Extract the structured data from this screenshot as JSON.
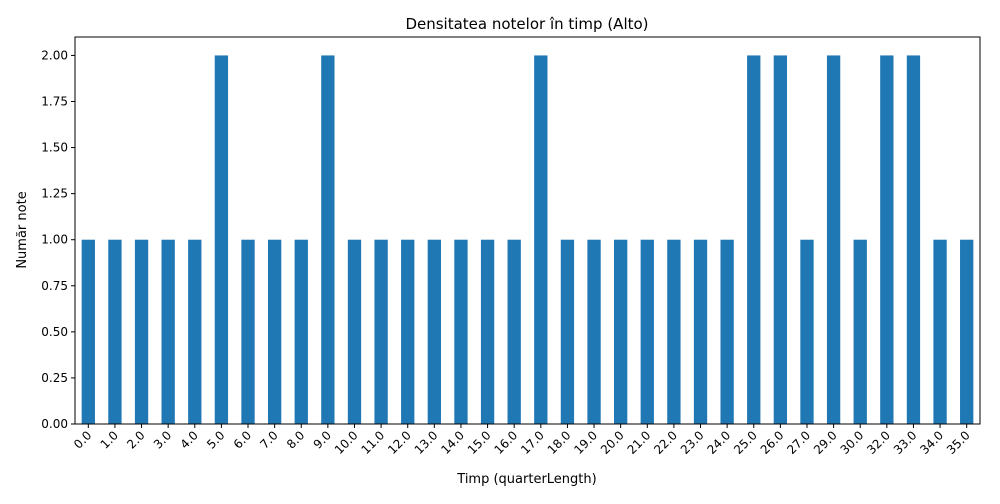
{
  "chart_data": {
    "type": "bar",
    "title": "Densitatea notelor în timp (Alto)",
    "xlabel": "Timp (quarterLength)",
    "ylabel": "Număr note",
    "categories": [
      "0.0",
      "1.0",
      "2.0",
      "3.0",
      "4.0",
      "5.0",
      "6.0",
      "7.0",
      "8.0",
      "9.0",
      "10.0",
      "11.0",
      "12.0",
      "13.0",
      "14.0",
      "15.0",
      "16.0",
      "17.0",
      "18.0",
      "19.0",
      "20.0",
      "21.0",
      "22.0",
      "23.0",
      "24.0",
      "25.0",
      "26.0",
      "27.0",
      "29.0",
      "30.0",
      "32.0",
      "33.0",
      "34.0",
      "35.0"
    ],
    "values": [
      1,
      1,
      1,
      1,
      1,
      2,
      1,
      1,
      1,
      2,
      1,
      1,
      1,
      1,
      1,
      1,
      1,
      2,
      1,
      1,
      1,
      1,
      1,
      1,
      1,
      2,
      2,
      1,
      2,
      1,
      2,
      2,
      1,
      1
    ],
    "ylim": [
      0,
      2.1
    ],
    "yticks": [
      0,
      0.25,
      0.5,
      0.75,
      1.0,
      1.25,
      1.5,
      1.75,
      2.0
    ],
    "ytick_labels": [
      "0.00",
      "0.25",
      "0.50",
      "0.75",
      "1.00",
      "1.25",
      "1.50",
      "1.75",
      "2.00"
    ],
    "bar_color": "#1f77b4",
    "grid": false,
    "legend": false
  }
}
